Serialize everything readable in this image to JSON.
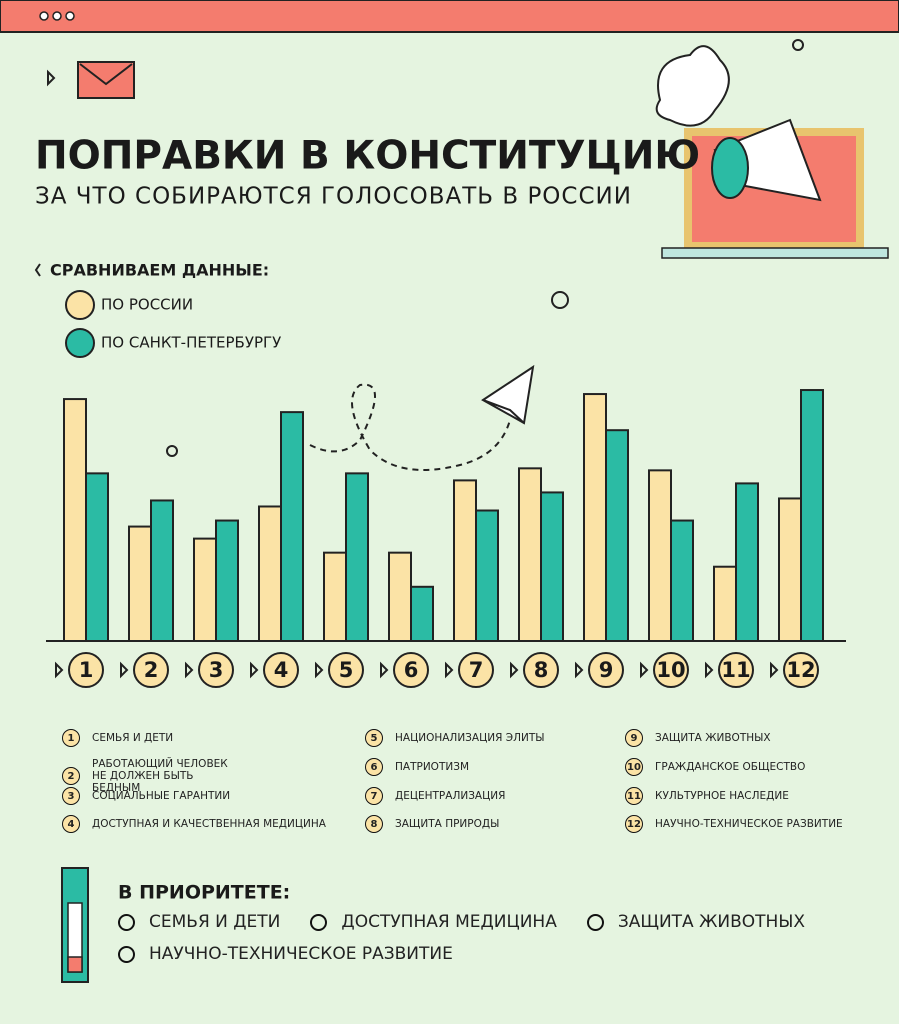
{
  "chart_data": {
    "type": "bar",
    "title": "ПОПРАВКИ В КОНСТИТУЦИЮ",
    "subtitle": "ЗА ЧТО СОБИРАЮТСЯ ГОЛОСОВАТЬ В РОССИИ",
    "legend_title": "СРАВНИВАЕМ ДАННЫЕ:",
    "categories": [
      "1",
      "2",
      "3",
      "4",
      "5",
      "6",
      "7",
      "8",
      "9",
      "10",
      "11",
      "12"
    ],
    "series": [
      {
        "name": "ПО РОССИИ",
        "color": "#fbe3a6",
        "values": [
          241,
          114,
          102,
          134,
          88,
          88,
          160,
          172,
          246,
          170,
          74,
          142
        ]
      },
      {
        "name": "ПО САНКТ-ПЕТЕРБУРГУ",
        "color": "#2bbba4",
        "values": [
          167,
          140,
          120,
          228,
          167,
          54,
          130,
          148,
          210,
          120,
          157,
          250
        ]
      }
    ],
    "ylim": [
      0,
      260
    ]
  },
  "key": [
    "СЕМЬЯ И ДЕТИ",
    "РАБОТАЮЩИЙ ЧЕЛОВЕК НЕ ДОЛЖЕН БЫТЬ БЕДНЫМ",
    "СОЦИАЛЬНЫЕ ГАРАНТИИ",
    "ДОСТУПНАЯ И КАЧЕСТВЕННАЯ МЕДИЦИНА",
    "НАЦИОНАЛИЗАЦИЯ ЭЛИТЫ",
    "ПАТРИОТИЗМ",
    "ДЕЦЕНТРАЛИЗАЦИЯ",
    "ЗАЩИТА ПРИРОДЫ",
    "ЗАЩИТА ЖИВОТНЫХ",
    "ГРАЖДАНСКОЕ ОБЩЕСТВО",
    "КУЛЬТУРНОЕ НАСЛЕДИЕ",
    "НАУЧНО-ТЕХНИЧЕСКОЕ РАЗВИТИЕ"
  ],
  "priority": {
    "title": "В ПРИОРИТЕТЕ:",
    "items": [
      "СЕМЬЯ И ДЕТИ",
      "ДОСТУПНАЯ МЕДИЦИНА",
      "ЗАЩИТА ЖИВОТНЫХ",
      "НАУЧНО-ТЕХНИЧЕСКОЕ РАЗВИТИЕ"
    ]
  }
}
